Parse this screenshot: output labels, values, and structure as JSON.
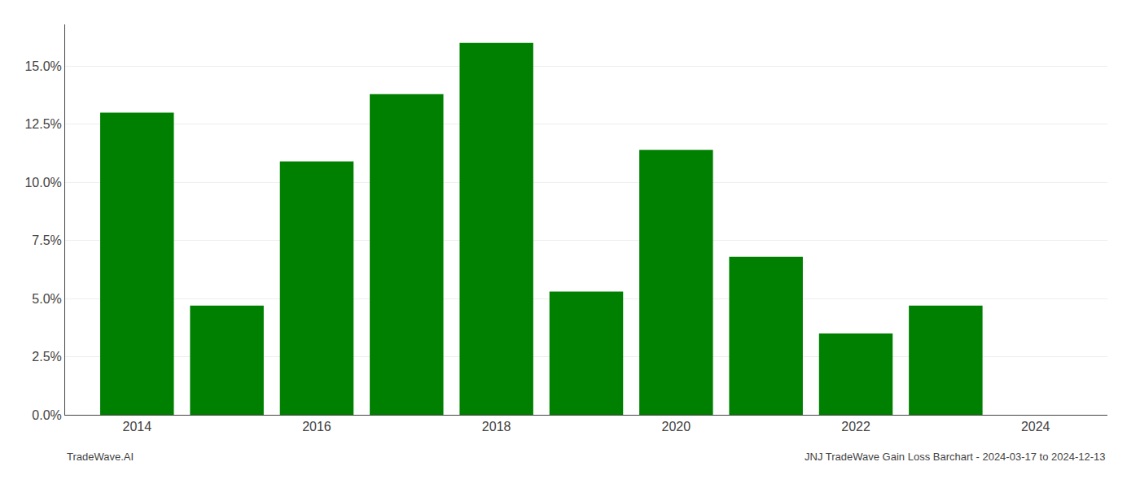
{
  "chart_data": {
    "type": "bar",
    "x": [
      2014,
      2015,
      2016,
      2017,
      2018,
      2019,
      2020,
      2021,
      2022,
      2023,
      2024
    ],
    "values": [
      0.13,
      0.047,
      0.109,
      0.138,
      0.16,
      0.053,
      0.114,
      0.068,
      0.035,
      0.047,
      0.0
    ],
    "color": "#008000",
    "xlim": [
      2013.2,
      2024.8
    ],
    "xticks": [
      2014,
      2016,
      2018,
      2020,
      2022,
      2024
    ],
    "ylim": [
      0,
      0.168
    ],
    "yticks": [
      {
        "value": 0.0,
        "label": "0.0%"
      },
      {
        "value": 0.025,
        "label": "2.5%"
      },
      {
        "value": 0.05,
        "label": "5.0%"
      },
      {
        "value": 0.075,
        "label": "7.5%"
      },
      {
        "value": 0.1,
        "label": "10.0%"
      },
      {
        "value": 0.125,
        "label": "12.5%"
      },
      {
        "value": 0.15,
        "label": "15.0%"
      }
    ],
    "grid": "y",
    "annotations": [
      "TradeWave.AI",
      "JNJ TradeWave Gain Loss Barchart - 2024-03-17 to 2024-12-13"
    ]
  }
}
